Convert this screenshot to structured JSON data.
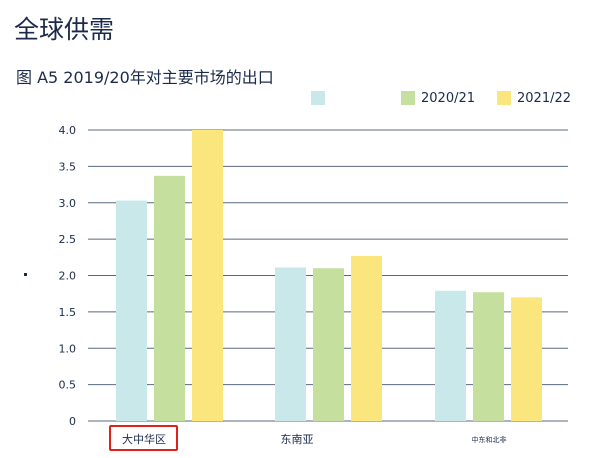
{
  "header": {
    "title": "全球供需"
  },
  "chart_data": {
    "type": "bar",
    "title": "图 A5 2019/20年对主要市场的出口",
    "categories": [
      "大中华区",
      "东南亚",
      "中东和北非"
    ],
    "highlighted_category": "大中华区",
    "series": [
      {
        "name": "",
        "color": "#c8e8ea",
        "values": [
          3.03,
          2.11,
          1.79
        ]
      },
      {
        "name": "2020/21",
        "color": "#c5df9e",
        "values": [
          3.37,
          2.1,
          1.77
        ]
      },
      {
        "name": "2021/22",
        "color": "#fbe57d",
        "values": [
          4.0,
          2.27,
          1.7
        ]
      }
    ],
    "yticks": [
      "0",
      "0.5",
      "1.0",
      "1.5",
      "2.0",
      "2.5",
      "3.0",
      "3.5",
      "4.0"
    ],
    "ylim": [
      0,
      4.0
    ],
    "grid": true,
    "legend_position": "top-right",
    "gridline_color": "#5a6880"
  }
}
